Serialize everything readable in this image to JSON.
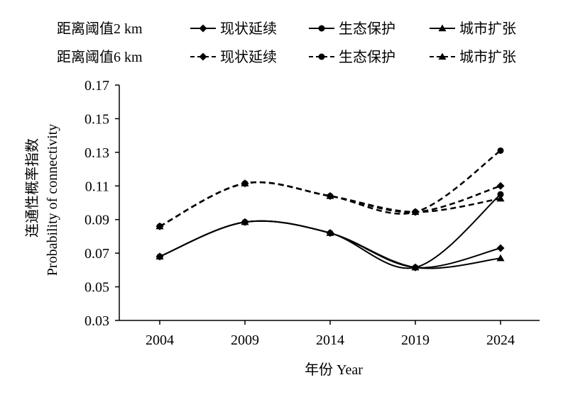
{
  "chart_data": {
    "type": "line",
    "xlabel": "年份 Year",
    "ylabel_cn": "连通性概率指数",
    "ylabel_en": "Probability of connectivity",
    "ylim": [
      0.03,
      0.17
    ],
    "yticks": [
      "0.03",
      "0.05",
      "0.07",
      "0.09",
      "0.11",
      "0.13",
      "0.15",
      "0.17"
    ],
    "categories": [
      "2004",
      "2009",
      "2014",
      "2019",
      "2024"
    ],
    "legend_position": "top",
    "legend_groups": [
      {
        "label": "距离阈值2 km",
        "line_style": "solid"
      },
      {
        "label": "距离阈值6 km",
        "line_style": "dashed"
      }
    ],
    "series": [
      {
        "name": "现状延续",
        "group": "距离阈值2 km",
        "marker": "diamond",
        "line_style": "solid",
        "values": [
          0.068,
          0.0885,
          0.082,
          0.0615,
          0.073
        ]
      },
      {
        "name": "生态保护",
        "group": "距离阈值2 km",
        "marker": "circle",
        "line_style": "solid",
        "values": [
          0.068,
          0.0885,
          0.082,
          0.0615,
          0.105
        ]
      },
      {
        "name": "城市扩张",
        "group": "距离阈值2 km",
        "marker": "triangle",
        "line_style": "solid",
        "values": [
          0.068,
          0.0885,
          0.082,
          0.0615,
          0.067
        ]
      },
      {
        "name": "现状延续",
        "group": "距离阈值6 km",
        "marker": "diamond",
        "line_style": "dashed",
        "values": [
          0.086,
          0.1115,
          0.104,
          0.0945,
          0.11
        ]
      },
      {
        "name": "生态保护",
        "group": "距离阈值6 km",
        "marker": "circle",
        "line_style": "dashed",
        "values": [
          0.086,
          0.1115,
          0.104,
          0.0945,
          0.131
        ]
      },
      {
        "name": "城市扩张",
        "group": "距离阈值6 km",
        "marker": "triangle",
        "line_style": "dashed",
        "values": [
          0.086,
          0.1115,
          0.104,
          0.0945,
          0.1025
        ]
      }
    ],
    "line_color": "#000000"
  }
}
